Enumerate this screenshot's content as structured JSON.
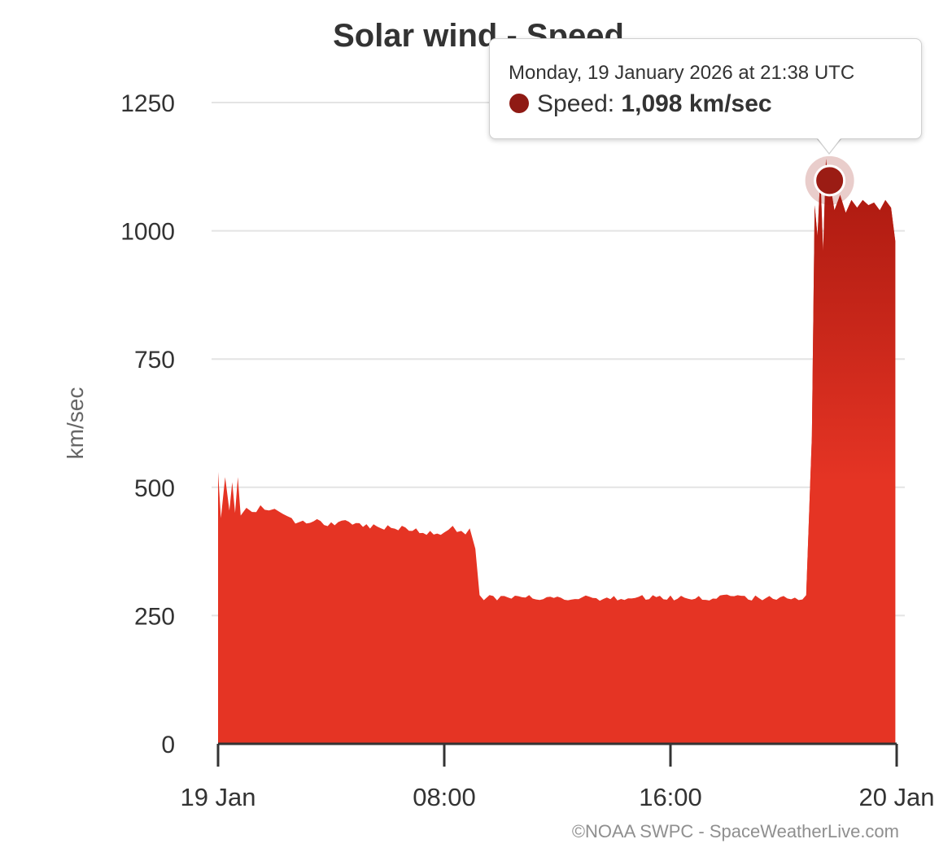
{
  "chart_data": {
    "type": "area",
    "title": "Solar wind - Speed",
    "ylabel": "km/sec",
    "xlabel": "",
    "ylim": [
      0,
      1250
    ],
    "y_ticks": [
      "0",
      "250",
      "500",
      "750",
      "1000",
      "1250"
    ],
    "x_tick_labels": [
      "19 Jan",
      "08:00",
      "16:00",
      "20 Jan"
    ],
    "x_range_hours": [
      0,
      24
    ],
    "grid": true,
    "colors": {
      "fill": "#e53424",
      "fill_top": "#b71d14",
      "marker": "#9b1c14"
    },
    "series": [
      {
        "name": "Speed",
        "x_hours": [
          0.0,
          0.1,
          0.25,
          0.4,
          0.5,
          0.6,
          0.7,
          0.8,
          1.0,
          1.2,
          1.5,
          1.8,
          2.0,
          2.3,
          2.6,
          3.0,
          3.5,
          4.0,
          4.5,
          5.0,
          5.5,
          6.0,
          6.5,
          7.0,
          7.5,
          8.0,
          8.3,
          8.6,
          8.9,
          9.1,
          9.25,
          9.4,
          9.6,
          10,
          11,
          12,
          13,
          14,
          15,
          16,
          17,
          18,
          19,
          20,
          20.8,
          21.0,
          21.1,
          21.2,
          21.3,
          21.4,
          21.5,
          21.6,
          21.63,
          21.8,
          22.0,
          22.2,
          22.4,
          22.6,
          22.8,
          23.0,
          23.2,
          23.4,
          23.6,
          23.8,
          23.95
        ],
        "values": [
          530,
          440,
          520,
          455,
          510,
          450,
          520,
          445,
          460,
          452,
          465,
          455,
          458,
          448,
          440,
          435,
          438,
          432,
          436,
          430,
          428,
          426,
          425,
          420,
          415,
          412,
          425,
          415,
          420,
          380,
          290,
          280,
          290,
          288,
          290,
          287,
          289,
          288,
          290,
          289,
          288,
          291,
          289,
          288,
          290,
          600,
          1050,
          990,
          1110,
          960,
          1140,
          1090,
          1098,
          1040,
          1070,
          1035,
          1060,
          1045,
          1060,
          1050,
          1055,
          1040,
          1060,
          1045,
          980
        ]
      }
    ],
    "tooltip": {
      "date": "Monday, 19 January 2026 at 21:38 UTC",
      "label": "Speed: ",
      "value": "1,098 km/sec",
      "x_hours": 21.63,
      "y": 1098
    },
    "credit": "©NOAA SWPC - SpaceWeatherLive.com"
  }
}
